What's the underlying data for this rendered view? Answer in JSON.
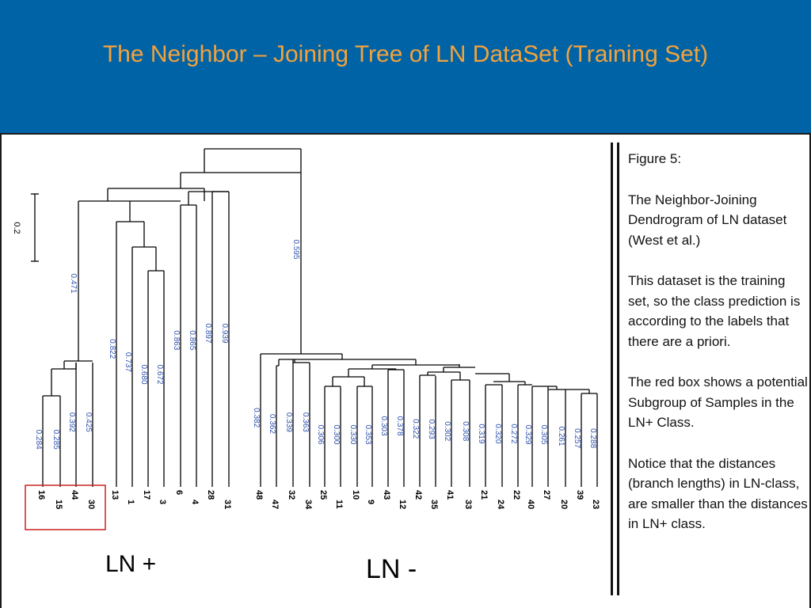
{
  "slide": {
    "title": "The Neighbor – Joining Tree of LN DataSet (Training Set)",
    "colors": {
      "header_bg": "#0063a6",
      "title": "#f3a23c",
      "branch_label": "#3355b0",
      "highlight_box": "#cc2222"
    }
  },
  "figure": {
    "scale_label": "0.2",
    "class_labels": {
      "ln_plus": "LN +",
      "ln_minus": "LN -"
    },
    "leaves": [
      {
        "id": "16",
        "branch": "0.284"
      },
      {
        "id": "15",
        "branch": "0.285"
      },
      {
        "id": "44",
        "branch": "0.392"
      },
      {
        "id": "30",
        "branch": "0.425"
      },
      {
        "id": "13",
        "branch": "0.822"
      },
      {
        "id": "1",
        "branch": "0.737"
      },
      {
        "id": "17",
        "branch": "0.680"
      },
      {
        "id": "3",
        "branch": "0.672"
      },
      {
        "id": "6",
        "branch": "0.863"
      },
      {
        "id": "4",
        "branch": "0.865"
      },
      {
        "id": "28",
        "branch": "0.897"
      },
      {
        "id": "31",
        "branch": "0.939"
      },
      {
        "id": "48",
        "branch": "0.382"
      },
      {
        "id": "47",
        "branch": "0.362"
      },
      {
        "id": "32",
        "branch": "0.339"
      },
      {
        "id": "34",
        "branch": "0.363"
      },
      {
        "id": "25",
        "branch": "0.306"
      },
      {
        "id": "11",
        "branch": "0.300"
      },
      {
        "id": "10",
        "branch": "0.330"
      },
      {
        "id": "9",
        "branch": "0.353"
      },
      {
        "id": "43",
        "branch": "0.303"
      },
      {
        "id": "12",
        "branch": "0.378"
      },
      {
        "id": "42",
        "branch": "0.322"
      },
      {
        "id": "35",
        "branch": "0.293"
      },
      {
        "id": "41",
        "branch": "0.302"
      },
      {
        "id": "33",
        "branch": "0.308"
      },
      {
        "id": "21",
        "branch": "0.319"
      },
      {
        "id": "24",
        "branch": "0.320"
      },
      {
        "id": "22",
        "branch": "0.272"
      },
      {
        "id": "40",
        "branch": "0.329"
      },
      {
        "id": "27",
        "branch": "0.305"
      },
      {
        "id": "20",
        "branch": "0.261"
      },
      {
        "id": "39",
        "branch": "0.257"
      },
      {
        "id": "23",
        "branch": "0.288"
      }
    ],
    "internal_labels": {
      "ln_plus_stem": "0.471",
      "ln_minus_stem": "0.595"
    }
  },
  "caption": {
    "heading": "Figure 5:",
    "p1": "The Neighbor-Joining Dendrogram of LN dataset (West et al.)",
    "p2": "This dataset is the training set, so the class prediction is according to the labels that there are a priori.",
    "p3": "The red box shows a potential Subgroup of Samples in the LN+ Class.",
    "p4": "Notice that the distances (branch lengths) in LN-class, are smaller than the distances in LN+ class."
  }
}
